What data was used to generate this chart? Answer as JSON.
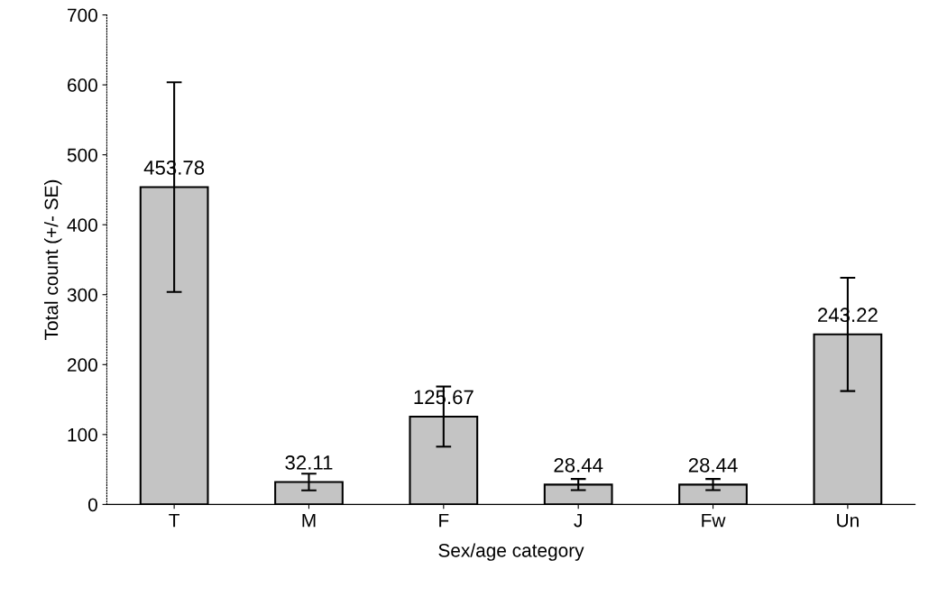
{
  "chart_data": {
    "type": "bar",
    "xlabel": "Sex/age category",
    "ylabel": "Total count (+/- SE)",
    "categories": [
      "T",
      "M",
      "F",
      "J",
      "Fw",
      "Un"
    ],
    "values": [
      453.78,
      32.11,
      125.67,
      28.44,
      28.44,
      243.22
    ],
    "errors": [
      150,
      12,
      43,
      8,
      8,
      81
    ],
    "color": "#c4c4c4",
    "data_labels": true,
    "ylim": [
      0,
      700
    ],
    "yticks": [
      0,
      100,
      200,
      300,
      400,
      500,
      600,
      700
    ],
    "grid": false,
    "legend": false
  }
}
